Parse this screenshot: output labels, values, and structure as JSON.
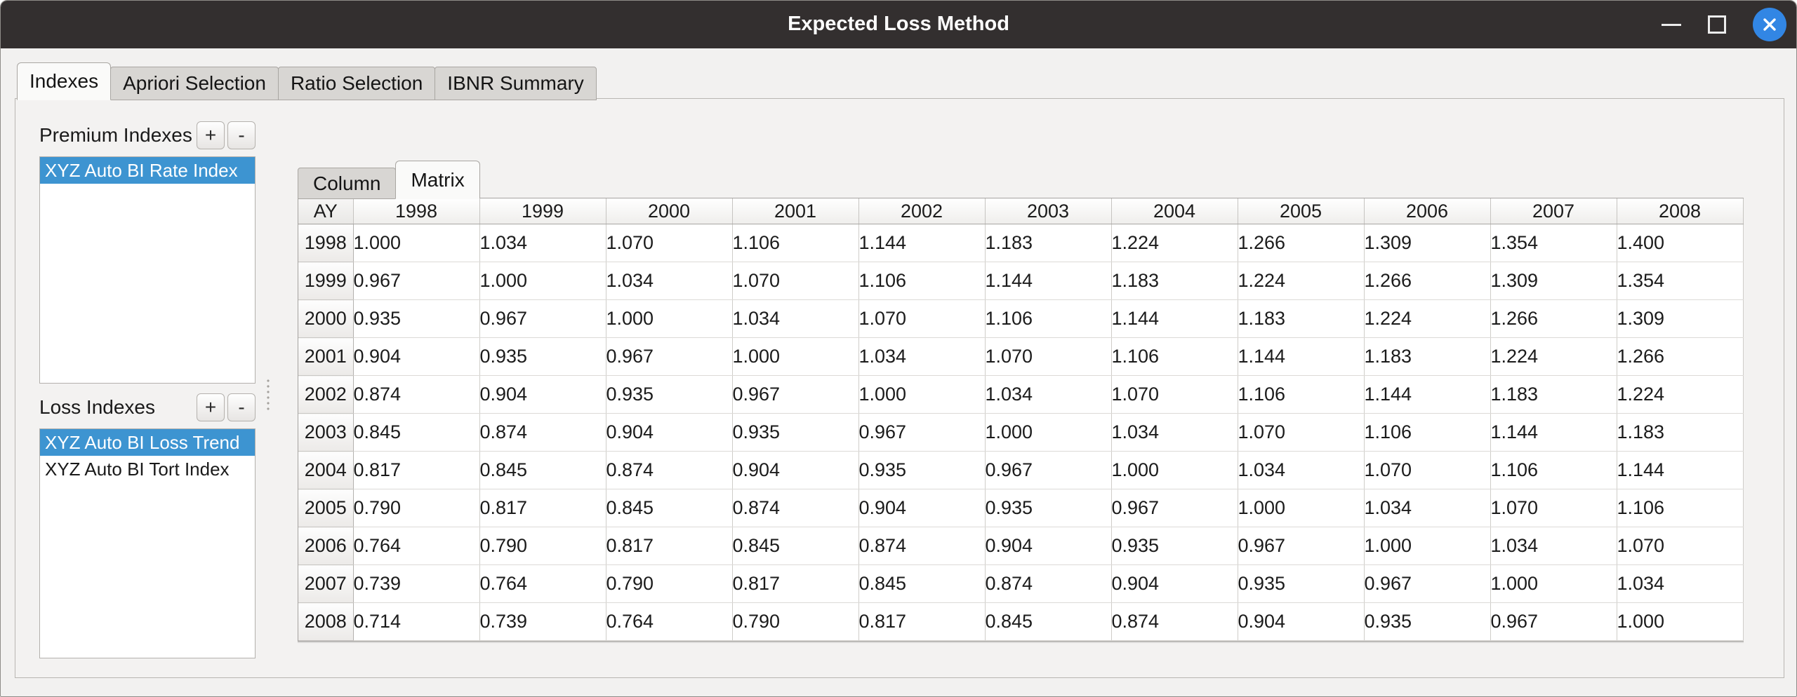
{
  "window": {
    "title": "Expected Loss Method"
  },
  "main_tabs": [
    {
      "label": "Indexes",
      "active": true
    },
    {
      "label": "Apriori Selection",
      "active": false
    },
    {
      "label": "Ratio Selection",
      "active": false
    },
    {
      "label": "IBNR Summary",
      "active": false
    }
  ],
  "premium": {
    "label": "Premium Indexes",
    "add_button": "+",
    "remove_button": "-",
    "items": [
      {
        "label": "XYZ Auto BI Rate Index",
        "selected": true
      }
    ]
  },
  "loss": {
    "label": "Loss Indexes",
    "add_button": "+",
    "remove_button": "-",
    "items": [
      {
        "label": "XYZ Auto BI Loss Trend",
        "selected": true
      },
      {
        "label": "XYZ Auto BI Tort Index",
        "selected": false
      }
    ]
  },
  "view_tabs": [
    {
      "label": "Column",
      "active": false
    },
    {
      "label": "Matrix",
      "active": true
    }
  ],
  "matrix": {
    "corner_header": "AY",
    "columns": [
      "1998",
      "1999",
      "2000",
      "2001",
      "2002",
      "2003",
      "2004",
      "2005",
      "2006",
      "2007",
      "2008"
    ],
    "rows": [
      {
        "year": "1998",
        "values": [
          "1.000",
          "1.034",
          "1.070",
          "1.106",
          "1.144",
          "1.183",
          "1.224",
          "1.266",
          "1.309",
          "1.354",
          "1.400"
        ]
      },
      {
        "year": "1999",
        "values": [
          "0.967",
          "1.000",
          "1.034",
          "1.070",
          "1.106",
          "1.144",
          "1.183",
          "1.224",
          "1.266",
          "1.309",
          "1.354"
        ]
      },
      {
        "year": "2000",
        "values": [
          "0.935",
          "0.967",
          "1.000",
          "1.034",
          "1.070",
          "1.106",
          "1.144",
          "1.183",
          "1.224",
          "1.266",
          "1.309"
        ]
      },
      {
        "year": "2001",
        "values": [
          "0.904",
          "0.935",
          "0.967",
          "1.000",
          "1.034",
          "1.070",
          "1.106",
          "1.144",
          "1.183",
          "1.224",
          "1.266"
        ]
      },
      {
        "year": "2002",
        "values": [
          "0.874",
          "0.904",
          "0.935",
          "0.967",
          "1.000",
          "1.034",
          "1.070",
          "1.106",
          "1.144",
          "1.183",
          "1.224"
        ]
      },
      {
        "year": "2003",
        "values": [
          "0.845",
          "0.874",
          "0.904",
          "0.935",
          "0.967",
          "1.000",
          "1.034",
          "1.070",
          "1.106",
          "1.144",
          "1.183"
        ]
      },
      {
        "year": "2004",
        "values": [
          "0.817",
          "0.845",
          "0.874",
          "0.904",
          "0.935",
          "0.967",
          "1.000",
          "1.034",
          "1.070",
          "1.106",
          "1.144"
        ]
      },
      {
        "year": "2005",
        "values": [
          "0.790",
          "0.817",
          "0.845",
          "0.874",
          "0.904",
          "0.935",
          "0.967",
          "1.000",
          "1.034",
          "1.070",
          "1.106"
        ]
      },
      {
        "year": "2006",
        "values": [
          "0.764",
          "0.790",
          "0.817",
          "0.845",
          "0.874",
          "0.904",
          "0.935",
          "0.967",
          "1.000",
          "1.034",
          "1.070"
        ]
      },
      {
        "year": "2007",
        "values": [
          "0.739",
          "0.764",
          "0.790",
          "0.817",
          "0.845",
          "0.874",
          "0.904",
          "0.935",
          "0.967",
          "1.000",
          "1.034"
        ]
      },
      {
        "year": "2008",
        "values": [
          "0.714",
          "0.739",
          "0.764",
          "0.790",
          "0.817",
          "0.845",
          "0.874",
          "0.904",
          "0.935",
          "0.967",
          "1.000"
        ]
      }
    ]
  },
  "colors": {
    "titlebar_bg": "#332f2f",
    "close_button": "#3286e4",
    "selection_blue": "#3d94d1",
    "window_bg": "#f2f1f0",
    "tab_inactive": "#d8d6d3"
  }
}
